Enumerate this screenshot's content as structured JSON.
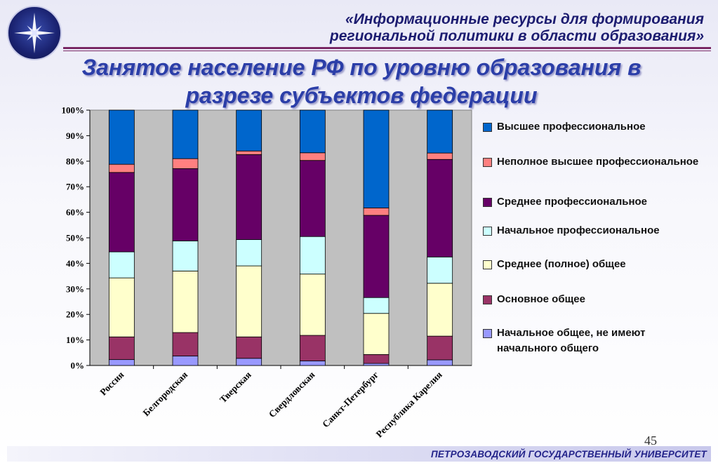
{
  "header": {
    "line1": "«Информационные ресурсы для формирования",
    "line2": "региональной политики в области образования»"
  },
  "title": {
    "line1": "Занятое население  РФ по уровню образования в",
    "line2": "разрезе субъектов федерации"
  },
  "page_number": "45",
  "footer": "ПЕТРОЗАВОДСКИЙ ГОСУДАРСТВЕННЫЙ УНИВЕРСИТЕТ",
  "colors": {
    "plot_bg": "#c0c0c0",
    "header_text": "#1c1c70",
    "title_text": "#2b3ea8",
    "rule": "#7a2a66"
  },
  "logo": {
    "icon": "university-star-logo-icon"
  },
  "chart_data": {
    "type": "bar",
    "stacked": true,
    "normalized": true,
    "categories": [
      "Россия",
      "Белгородская",
      "Тверская",
      "Свердловская",
      "Санкт-Петербург",
      "Республика Карелия"
    ],
    "yticks": [
      "0%",
      "10%",
      "20%",
      "30%",
      "40%",
      "50%",
      "60%",
      "70%",
      "80%",
      "90%",
      "100%"
    ],
    "ylim": [
      0,
      100
    ],
    "grid": false,
    "legend_position": "right",
    "series": [
      {
        "name": "Начальное общее, не имеют начального общего",
        "color": "#9999ff",
        "values": [
          2.3,
          3.7,
          2.8,
          1.8,
          0.8,
          2.2
        ]
      },
      {
        "name": "Основное общее",
        "color": "#993366",
        "values": [
          8.9,
          9.2,
          8.4,
          10.0,
          3.5,
          9.3
        ]
      },
      {
        "name": "Среднее (полное) общее",
        "color": "#ffffcc",
        "values": [
          23.1,
          24.1,
          27.8,
          24.0,
          16.1,
          20.7
        ]
      },
      {
        "name": "Начальное профессиональное",
        "color": "#ccffff",
        "values": [
          10.2,
          11.8,
          10.3,
          14.7,
          6.2,
          10.3
        ]
      },
      {
        "name": "Среднее профессиональное",
        "color": "#660066",
        "values": [
          31.1,
          28.3,
          33.3,
          29.8,
          32.2,
          38.2
        ]
      },
      {
        "name": "Неполное высшее профессиональное",
        "color": "#ff8080",
        "values": [
          3.2,
          3.9,
          1.4,
          3.0,
          2.9,
          2.5
        ]
      },
      {
        "name": "Высшее профессиональное",
        "color": "#0066cc",
        "values": [
          21.2,
          19.0,
          16.0,
          16.7,
          38.3,
          16.8
        ]
      }
    ]
  }
}
